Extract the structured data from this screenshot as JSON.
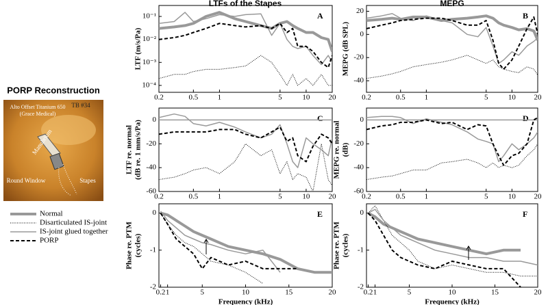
{
  "figure": {
    "column_titles": [
      "LTFs of the Stapes",
      "MEPG"
    ],
    "photo_title": "PORP Reconstruction",
    "photo_labels": [
      "Alto Offset Titanium 650",
      "(Grace Medical)",
      "TB #34",
      "Manubrium",
      "Round Window",
      "Stapes"
    ]
  },
  "chart_data": [
    {
      "type": "line",
      "label": "A",
      "ylabel": [
        "LTF (m/s/Pa)"
      ],
      "xscale": "log",
      "yscale": "log",
      "xlim": [
        0.2,
        20
      ],
      "xticks": [
        0.2,
        0.5,
        1,
        5,
        10,
        20
      ],
      "ylim": [
        5e-05,
        0.3
      ],
      "yticks": [
        {
          "value": 0.0001,
          "label": "10⁻⁴"
        },
        {
          "value": 0.001,
          "label": "10⁻³"
        },
        {
          "value": 0.01,
          "label": "10⁻²"
        },
        {
          "value": 0.1,
          "label": "10⁻¹"
        }
      ],
      "x": [
        0.2,
        0.3,
        0.4,
        0.5,
        0.7,
        1,
        1.5,
        2,
        3,
        4,
        5,
        6,
        7,
        8,
        10,
        12,
        15,
        18,
        20
      ],
      "series": [
        {
          "name": "Normal",
          "color": "#999999",
          "style": "thick",
          "values": [
            0.03,
            0.035,
            0.04,
            0.05,
            0.1,
            0.15,
            0.08,
            0.06,
            0.04,
            0.03,
            0.05,
            0.06,
            0.04,
            0.03,
            0.02,
            0.02,
            0.012,
            0.01,
            0.003
          ]
        },
        {
          "name": "Disarticulated IS-joint",
          "color": "#000000",
          "style": "dotted",
          "values": [
            0.0002,
            0.0003,
            0.0003,
            0.0004,
            0.0005,
            0.0005,
            0.0006,
            0.0007,
            0.002,
            0.001,
            0.0003,
            0.0001,
            0.0003,
            0.0001,
            0.0002,
            0.0001,
            0.0003,
            0.0001,
            0.0001
          ]
        },
        {
          "name": "IS-joint glued together",
          "color": "#999999",
          "style": "thin",
          "values": [
            0.05,
            0.06,
            0.15,
            0.06,
            0.08,
            0.12,
            0.1,
            0.12,
            0.13,
            0.015,
            0.05,
            0.01,
            0.005,
            0.004,
            0.005,
            0.002,
            0.0008,
            0.002,
            0.001
          ]
        },
        {
          "name": "PORP",
          "color": "#000000",
          "style": "dashed",
          "values": [
            0.01,
            0.012,
            0.015,
            0.02,
            0.03,
            0.05,
            0.04,
            0.035,
            0.04,
            0.03,
            0.05,
            0.02,
            0.03,
            0.005,
            0.005,
            0.003,
            0.001,
            0.0006,
            0.002
          ]
        }
      ]
    },
    {
      "type": "line",
      "label": "B",
      "ylabel": [
        "MEPG (dB SPL)"
      ],
      "xscale": "log",
      "xlim": [
        0.2,
        20
      ],
      "xticks": [
        0.2,
        0.5,
        1,
        5,
        10,
        20
      ],
      "ylim": [
        -50,
        25
      ],
      "yticks": [
        -40,
        -20,
        0,
        20
      ],
      "x": [
        0.2,
        0.3,
        0.4,
        0.5,
        0.7,
        1,
        1.5,
        2,
        3,
        4,
        5,
        6,
        7,
        8,
        10,
        12,
        15,
        18,
        20
      ],
      "series": [
        {
          "color": "#999999",
          "style": "thick",
          "values": [
            12,
            13,
            14,
            13,
            15,
            15,
            12,
            13,
            14,
            15,
            16,
            14,
            10,
            8,
            6,
            4,
            5,
            3,
            -5
          ]
        },
        {
          "color": "#000000",
          "style": "dotted",
          "values": [
            -38,
            -36,
            -34,
            -32,
            -28,
            -26,
            -24,
            -22,
            -18,
            -22,
            -25,
            -22,
            -28,
            -30,
            -32,
            -33,
            -28,
            -30,
            -35
          ]
        },
        {
          "color": "#999999",
          "style": "thin",
          "values": [
            14,
            16,
            18,
            14,
            12,
            16,
            12,
            10,
            0,
            -2,
            6,
            -10,
            -25,
            -22,
            -15,
            -18,
            -10,
            -6,
            -3
          ]
        },
        {
          "color": "#000000",
          "style": "dashed",
          "values": [
            5,
            8,
            10,
            12,
            13,
            14,
            14,
            12,
            8,
            8,
            12,
            -5,
            -25,
            -30,
            -22,
            -10,
            5,
            15,
            0
          ]
        }
      ]
    },
    {
      "type": "line",
      "label": "C",
      "ylabel": [
        "LTF re. normal",
        "(dB re. 1 mm/s/Pa)"
      ],
      "xscale": "log",
      "xlim": [
        0.2,
        20
      ],
      "xticks": [
        0.2,
        0.5,
        1,
        5,
        10,
        20
      ],
      "ylim": [
        -60,
        10
      ],
      "yticks": [
        -60,
        -40,
        -20,
        0
      ],
      "x": [
        0.2,
        0.3,
        0.4,
        0.5,
        0.7,
        1,
        1.5,
        2,
        3,
        4,
        5,
        6,
        7,
        8,
        10,
        12,
        15,
        18,
        20
      ],
      "series": [
        {
          "color": "#999999",
          "style": "thin",
          "values": [
            0,
            0,
            0,
            0,
            0,
            0,
            0,
            0,
            0,
            0,
            0,
            0,
            0,
            0,
            0,
            0,
            0,
            0,
            0
          ]
        },
        {
          "color": "#000000",
          "style": "dotted",
          "values": [
            -50,
            -48,
            -45,
            -42,
            -40,
            -45,
            -35,
            -20,
            -30,
            -25,
            -45,
            -35,
            -50,
            -45,
            -48,
            -60,
            -20,
            -50,
            -55
          ]
        },
        {
          "color": "#999999",
          "style": "thin",
          "values": [
            2,
            5,
            3,
            -3,
            -5,
            -2,
            -6,
            -10,
            -15,
            -12,
            -4,
            -20,
            -35,
            -40,
            -15,
            -20,
            -25,
            -30,
            -15
          ]
        },
        {
          "color": "#000000",
          "style": "dashed",
          "values": [
            -12,
            -10,
            -10,
            -10,
            -10,
            -8,
            -8,
            -12,
            -15,
            -10,
            -6,
            -18,
            -15,
            -30,
            -35,
            -22,
            -12,
            -15,
            -20
          ]
        }
      ]
    },
    {
      "type": "line",
      "label": "D",
      "ylabel": [
        "MEPG re. normal",
        "(dB)"
      ],
      "xscale": "log",
      "xlim": [
        0.2,
        20
      ],
      "xticks": [
        0.2,
        0.5,
        1,
        5,
        10,
        20
      ],
      "ylim": [
        -60,
        10
      ],
      "yticks": [
        -60,
        -40,
        -20,
        0
      ],
      "x": [
        0.2,
        0.3,
        0.4,
        0.5,
        0.7,
        1,
        1.5,
        2,
        3,
        4,
        5,
        6,
        7,
        8,
        10,
        12,
        15,
        18,
        20
      ],
      "series": [
        {
          "color": "#999999",
          "style": "thin",
          "values": [
            0,
            0,
            0,
            0,
            0,
            0,
            0,
            0,
            0,
            0,
            0,
            0,
            0,
            0,
            0,
            0,
            0,
            0,
            0
          ]
        },
        {
          "color": "#000000",
          "style": "dotted",
          "values": [
            -50,
            -48,
            -47,
            -45,
            -42,
            -42,
            -36,
            -35,
            -33,
            -36,
            -40,
            -36,
            -40,
            -38,
            -40,
            -38,
            -30,
            -25,
            -20
          ]
        },
        {
          "color": "#999999",
          "style": "thin",
          "values": [
            2,
            3,
            3,
            2,
            -3,
            1,
            -2,
            -4,
            -10,
            -16,
            -18,
            -20,
            -35,
            -30,
            -20,
            -25,
            -20,
            -15,
            -10
          ]
        },
        {
          "color": "#000000",
          "style": "dashed",
          "values": [
            -8,
            -5,
            -4,
            -2,
            -2,
            0,
            -3,
            -2,
            -8,
            -4,
            -5,
            -20,
            -30,
            -38,
            -30,
            -28,
            -20,
            0,
            2
          ]
        }
      ]
    },
    {
      "type": "line",
      "label": "E",
      "ylabel": [
        "Phase re. PTM",
        "(cycles)"
      ],
      "xlabel": "Frequency (kHz)",
      "xlim": [
        0,
        20
      ],
      "xticks": [
        0.2,
        1,
        5,
        10,
        15,
        20
      ],
      "ylim": [
        -2,
        0.25
      ],
      "yticks": [
        -2,
        -1,
        0
      ],
      "x": [
        0.2,
        1,
        2,
        3,
        4,
        5,
        6,
        8,
        10,
        12,
        14,
        16,
        18,
        20
      ],
      "series": [
        {
          "color": "#999999",
          "style": "thick",
          "values": [
            0,
            -0.05,
            -0.2,
            -0.35,
            -0.5,
            -0.6,
            -0.7,
            -0.9,
            -1.0,
            -1.1,
            -1.25,
            -1.5,
            -1.6,
            -1.6
          ]
        },
        {
          "color": "#000000",
          "style": "dotted",
          "values": [
            0,
            -0.3,
            -0.6,
            -0.8,
            -0.9,
            -1.1,
            -1.3,
            -1.4,
            -1.6,
            -1.9,
            null,
            null,
            null,
            null
          ]
        },
        {
          "color": "#999999",
          "style": "thin",
          "values": [
            0.05,
            -0.2,
            -0.4,
            -0.6,
            -0.7,
            -0.8,
            -0.85,
            -1.0,
            -1.1,
            -1.0,
            -1.6,
            null,
            null,
            null
          ]
        },
        {
          "color": "#000000",
          "style": "dashed",
          "values": [
            0,
            -0.3,
            -0.7,
            -0.9,
            -1.1,
            -1.5,
            -1.2,
            -1.4,
            -1.3,
            -1.5,
            -1.5,
            -1.5,
            null,
            null
          ]
        }
      ]
    },
    {
      "type": "line",
      "label": "F",
      "ylabel": [
        "Phase re. PTM",
        "(cycles)"
      ],
      "xlabel": "Frequency (kHz)",
      "xlim": [
        0,
        20
      ],
      "xticks": [
        0.2,
        1,
        5,
        10,
        15,
        20
      ],
      "ylim": [
        -2,
        0.25
      ],
      "yticks": [
        -2,
        -1,
        0
      ],
      "x": [
        0.2,
        1,
        2,
        3,
        4,
        5,
        6,
        8,
        10,
        12,
        14,
        16,
        18,
        20
      ],
      "series": [
        {
          "color": "#999999",
          "style": "thick",
          "values": [
            0,
            -0.1,
            -0.3,
            -0.4,
            -0.5,
            -0.6,
            -0.7,
            -0.8,
            -0.9,
            -1.0,
            -1.1,
            -1.0,
            -1.0,
            null
          ]
        },
        {
          "color": "#000000",
          "style": "dotted",
          "values": [
            0,
            0.2,
            -0.2,
            -0.6,
            -0.8,
            -1.0,
            -1.3,
            -1.5,
            -1.4,
            -1.5,
            -1.6,
            -1.6,
            -1.7,
            -1.7
          ]
        },
        {
          "color": "#999999",
          "style": "thin",
          "values": [
            0,
            0.1,
            -0.2,
            -0.4,
            -0.6,
            -0.7,
            -0.8,
            -1.0,
            -1.1,
            -1.2,
            -1.2,
            -1.3,
            -1.3,
            -1.4
          ]
        },
        {
          "color": "#000000",
          "style": "dashed",
          "values": [
            0,
            -0.2,
            -0.6,
            -1.0,
            -1.2,
            -1.3,
            -1.4,
            -1.5,
            -1.3,
            -1.4,
            -1.5,
            -1.5,
            -2.0,
            null
          ]
        }
      ]
    }
  ]
}
